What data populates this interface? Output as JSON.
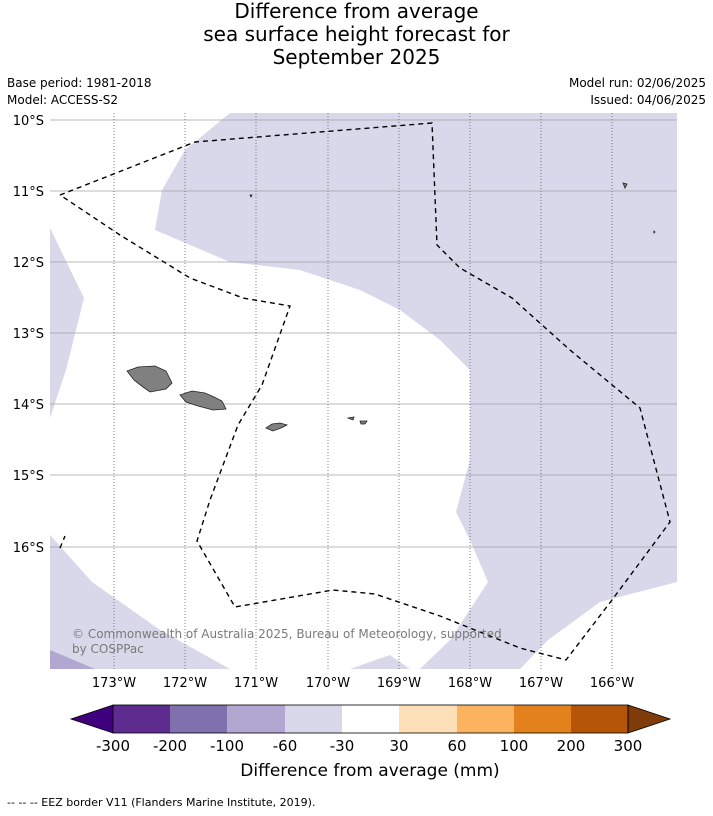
{
  "title": {
    "line1": "Difference from average",
    "line2": "sea surface height forecast for",
    "line3": "September 2025"
  },
  "meta": {
    "base_period": "Base period: 1981-2018",
    "model": "Model: ACCESS-S2",
    "model_run": "Model run: 02/06/2025",
    "issued": "Issued: 04/06/2025"
  },
  "map": {
    "lat_labels": [
      "10°S",
      "11°S",
      "12°S",
      "13°S",
      "14°S",
      "15°S",
      "16°S"
    ],
    "lon_labels": [
      "173°W",
      "172°W",
      "171°W",
      "170°W",
      "169°W",
      "168°W",
      "167°W",
      "166°W"
    ],
    "copyright_line1": "© Commonwealth of Australia 2025, Bureau of Meteorology, supported",
    "copyright_line2": "by COSPPac",
    "colors": {
      "land": "#808080",
      "anomaly_-60_-30": "#d8d8ea",
      "anomaly_-100_-60": "#b0a8d0",
      "anomaly_-30_30": "#ffffff"
    }
  },
  "colorbar": {
    "title": "Difference from average (mm)",
    "tick_labels": [
      "-300",
      "-200",
      "-100",
      "-60",
      "-30",
      "30",
      "60",
      "100",
      "200",
      "300"
    ],
    "colors": [
      "#3f007d",
      "#5e2c8f",
      "#8070ad",
      "#b0a8d0",
      "#d8d8ea",
      "#ffffff",
      "#fde0b8",
      "#fbb35f",
      "#e3821c",
      "#b45508",
      "#7f3b08"
    ]
  },
  "footnote": "--  --  -- EEZ border V11 (Flanders Marine Institute, 2019)."
}
